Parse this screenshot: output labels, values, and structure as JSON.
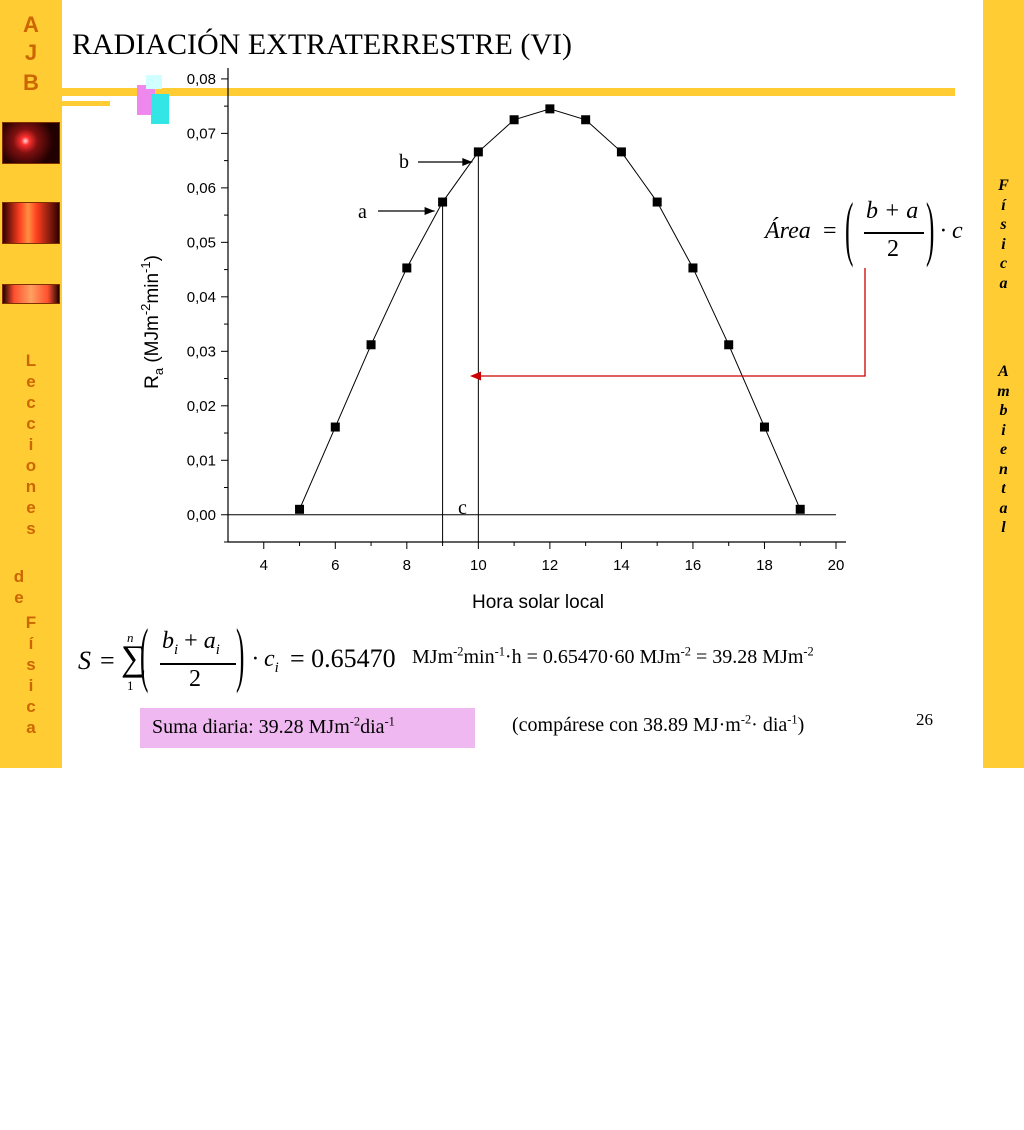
{
  "left_bar": {
    "logo_lines": [
      "A",
      "J",
      "B"
    ],
    "vertical_text_1": [
      "L",
      "e",
      "c",
      "c",
      "i",
      "o",
      "n",
      "e",
      "s"
    ],
    "vertical_text_2": [
      "d",
      "e"
    ],
    "vertical_text_3": [
      "F",
      "í",
      "s",
      "i",
      "c",
      "a"
    ]
  },
  "right_bar": {
    "vertical_text_1": [
      "F",
      "í",
      "s",
      "i",
      "c",
      "a"
    ],
    "vertical_text_2": [
      "A",
      "m",
      "b",
      "i",
      "e",
      "n",
      "t",
      "a",
      "l"
    ]
  },
  "slide": {
    "title": "RADIACIÓN EXTRATERRESTRE (VI)",
    "page_number": "26"
  },
  "chart_data": {
    "type": "scatter",
    "xlabel": "Hora solar local",
    "ylabel_main": "R",
    "ylabel_sub": "a",
    "ylabel_unit_1": " (MJm",
    "ylabel_unit_sup_1": "-2",
    "ylabel_unit_2": "min",
    "ylabel_unit_sup_2": "-1",
    "ylabel_unit_3": ")",
    "xlim": [
      3,
      20
    ],
    "ylim": [
      -0.005,
      0.082
    ],
    "xticks": [
      4,
      6,
      8,
      10,
      12,
      14,
      16,
      18,
      20
    ],
    "xtick_labels": [
      "4",
      "6",
      "8",
      "10",
      "12",
      "14",
      "16",
      "18",
      "20"
    ],
    "yticks": [
      0.0,
      0.01,
      0.02,
      0.03,
      0.04,
      0.05,
      0.06,
      0.07,
      0.08
    ],
    "ytick_labels": [
      "0,00",
      "0,01",
      "0,02",
      "0,03",
      "0,04",
      "0,05",
      "0,06",
      "0,07",
      "0,08"
    ],
    "x": [
      5,
      6,
      7,
      8,
      9,
      10,
      11,
      12,
      13,
      14,
      15,
      16,
      17,
      18,
      19
    ],
    "y": [
      0.001,
      0.0161,
      0.0312,
      0.0453,
      0.0574,
      0.0666,
      0.0725,
      0.0745,
      0.0725,
      0.0666,
      0.0574,
      0.0453,
      0.0312,
      0.0161,
      0.001
    ],
    "marker_color": "#000000",
    "line_color": "#000000",
    "annotations": {
      "a_label": "a",
      "b_label": "b",
      "c_label": "c",
      "a_x": 9,
      "b_x": 10,
      "area_arrow_color": "#cc0000"
    }
  },
  "formulas": {
    "area_lhs": "Área",
    "area_eq": "=",
    "area_num": "b + a",
    "area_den": "2",
    "area_mult": "· c",
    "sum_lhs": "S",
    "sum_eq": "=",
    "sum_upper": "n",
    "sum_lower": "1",
    "sum_num_b": "b",
    "sum_num_i1": "i",
    "sum_num_plus": " + ",
    "sum_num_a": "a",
    "sum_num_i2": "i",
    "sum_den": "2",
    "sum_mult": "· c",
    "sum_mult_i": "i",
    "sum_result": "= 0.65470",
    "units_line": {
      "p1": "MJm",
      "s1": "-2",
      "p2": "min",
      "s2": "-1",
      "p3": "·h = 0.65470·60 MJm",
      "s3": "-2",
      "p4": " = 39.28 MJm",
      "s4": "-2"
    },
    "suma_diaria": {
      "p1": "Suma diaria: 39.28 MJm",
      "s1": "-2",
      "p2": "dia",
      "s2": "-1"
    },
    "compare": {
      "p1": "(compárese con 38.89 MJ·m",
      "s1": "-2",
      "p2": "· dia",
      "s2": "-1",
      "p3": ")"
    }
  },
  "colors": {
    "sidebar": "#ffcc33",
    "sidebar_text": "#cc6600",
    "suma_box": "#f0b8f0",
    "deco_pink": "#ee88ee",
    "deco_cyan": "#33e6e6"
  }
}
